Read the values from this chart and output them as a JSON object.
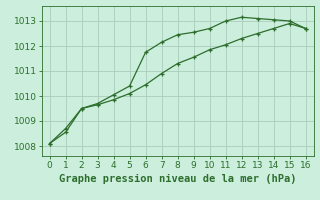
{
  "title": "Graphe pression niveau de la mer (hPa)",
  "bg_color": "#cceedd",
  "grid_color": "#aaccbb",
  "line_color": "#2d6e2d",
  "xlim": [
    -0.5,
    16.5
  ],
  "ylim": [
    1007.6,
    1013.6
  ],
  "yticks": [
    1008,
    1009,
    1010,
    1011,
    1012,
    1013
  ],
  "xticks": [
    0,
    1,
    2,
    3,
    4,
    5,
    6,
    7,
    8,
    9,
    10,
    11,
    12,
    13,
    14,
    15,
    16
  ],
  "line1_x": [
    0,
    1,
    2,
    3,
    4,
    5,
    6,
    7,
    8,
    9,
    10,
    11,
    12,
    13,
    14,
    15,
    16
  ],
  "line1_y": [
    1008.1,
    1008.7,
    1009.5,
    1009.7,
    1010.05,
    1010.4,
    1011.75,
    1012.15,
    1012.45,
    1012.55,
    1012.7,
    1013.0,
    1013.15,
    1013.1,
    1013.05,
    1013.0,
    1012.7
  ],
  "line2_x": [
    0,
    1,
    2,
    3,
    4,
    5,
    6,
    7,
    8,
    9,
    10,
    11,
    12,
    13,
    14,
    15,
    16
  ],
  "line2_y": [
    1008.1,
    1008.55,
    1009.5,
    1009.65,
    1009.85,
    1010.1,
    1010.45,
    1010.9,
    1011.3,
    1011.55,
    1011.85,
    1012.05,
    1012.3,
    1012.5,
    1012.7,
    1012.9,
    1012.7
  ],
  "title_fontsize": 7.5,
  "tick_fontsize": 6.5
}
